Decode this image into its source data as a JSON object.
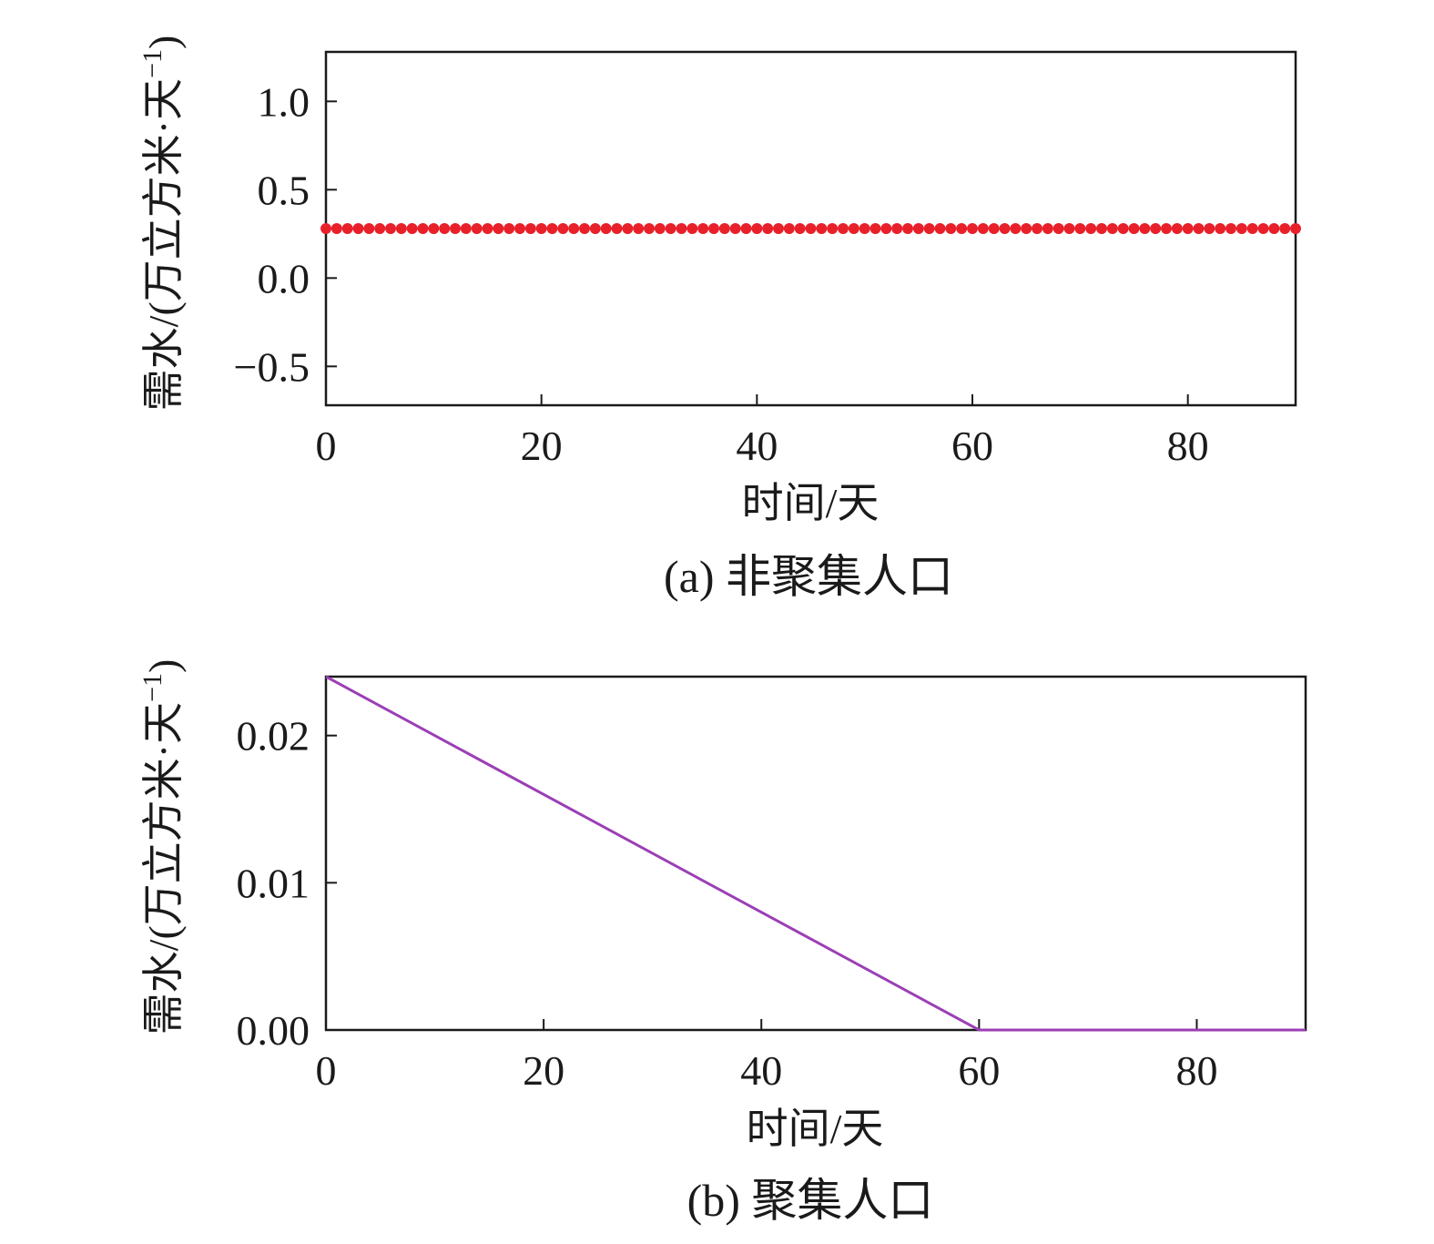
{
  "chart_data": [
    {
      "type": "scatter",
      "caption": "(a) 非聚集人口",
      "xlabel": "时间/天",
      "ylabel": "需水/(万立方米·天",
      "ylabel_sup": "−1",
      "ylabel_close": ")",
      "xlim": [
        0,
        90
      ],
      "ylim": [
        -0.72,
        1.28
      ],
      "xticks": [
        0,
        20,
        40,
        60,
        80
      ],
      "xtick_labels": [
        "0",
        "20",
        "40",
        "60",
        "80"
      ],
      "yticks": [
        1.0,
        0.5,
        0.0,
        -0.5
      ],
      "ytick_labels": [
        "1.0",
        "0.5",
        "0.0",
        "−0.5"
      ],
      "grid": false,
      "series": [
        {
          "color": "#e8202a",
          "marker": "circle",
          "x_start": 0,
          "x_end": 90,
          "x_step": 1,
          "y_constant": 0.28
        }
      ]
    },
    {
      "type": "line",
      "caption": "(b) 聚集人口",
      "xlabel": "时间/天",
      "ylabel": "需水/(万立方米·天",
      "ylabel_sup": "−1",
      "ylabel_close": ")",
      "xlim": [
        0,
        90
      ],
      "ylim": [
        0,
        0.024
      ],
      "xticks": [
        0,
        20,
        40,
        60,
        80
      ],
      "xtick_labels": [
        "0",
        "20",
        "40",
        "60",
        "80"
      ],
      "yticks": [
        0.02,
        0.01,
        0.0
      ],
      "ytick_labels": [
        "0.02",
        "0.01",
        "0.00"
      ],
      "grid": false,
      "series": [
        {
          "color": "#9b3fb5",
          "x": [
            0,
            60,
            90
          ],
          "y": [
            0.024,
            0.0,
            0.0
          ]
        }
      ]
    }
  ]
}
